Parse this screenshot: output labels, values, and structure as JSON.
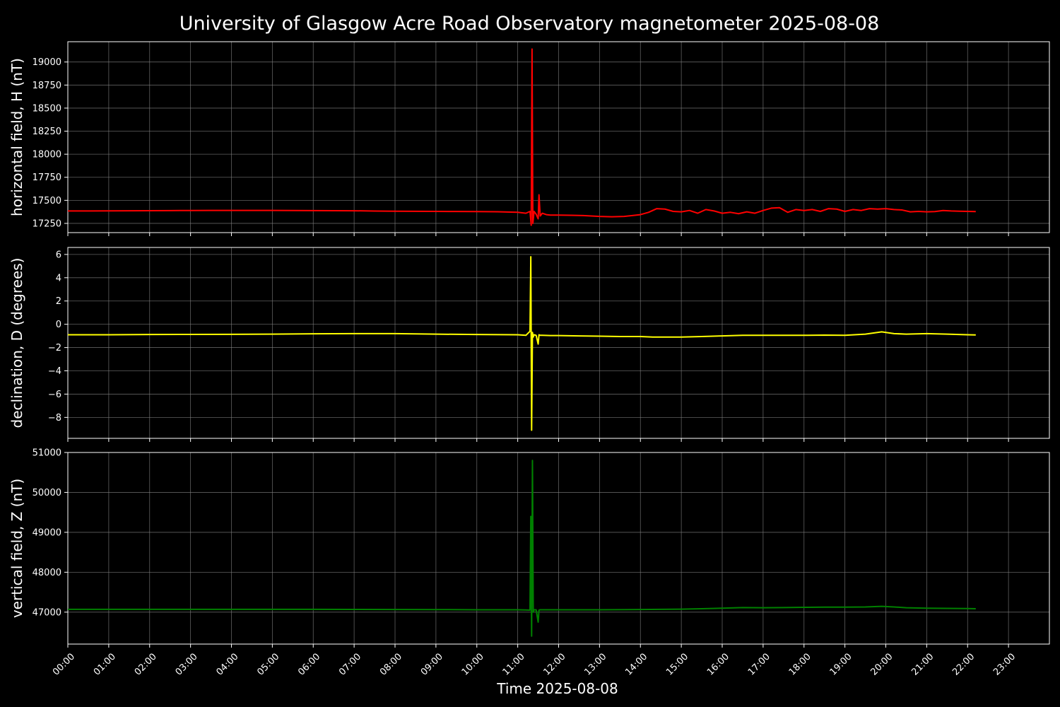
{
  "chart_data": {
    "type": "line",
    "title": "University of Glasgow Acre Road Observatory magnetometer 2025-08-08",
    "xlabel": "Time 2025-08-08",
    "grid": true,
    "x_unit": "hours",
    "xlim": [
      0,
      24
    ],
    "x_ticks": [
      0,
      1,
      2,
      3,
      4,
      5,
      6,
      7,
      8,
      9,
      10,
      11,
      12,
      13,
      14,
      15,
      16,
      17,
      18,
      19,
      20,
      21,
      22,
      23
    ],
    "x_tick_labels": [
      "00:00",
      "01:00",
      "02:00",
      "03:00",
      "04:00",
      "05:00",
      "06:00",
      "07:00",
      "08:00",
      "09:00",
      "10:00",
      "11:00",
      "12:00",
      "13:00",
      "14:00",
      "15:00",
      "16:00",
      "17:00",
      "18:00",
      "19:00",
      "20:00",
      "21:00",
      "22:00",
      "23:00"
    ],
    "panels": [
      {
        "ylabel": "horizontal field, H (nT)",
        "color": "#ff0000",
        "ylim": [
          17150,
          19220
        ],
        "y_ticks": [
          17250,
          17500,
          17750,
          18000,
          18250,
          18500,
          18750,
          19000
        ],
        "y_tick_labels": [
          "17250",
          "17500",
          "17750",
          "18000",
          "18250",
          "18500",
          "18750",
          "19000"
        ],
        "x": [
          0,
          0.5,
          1,
          1.5,
          2,
          2.5,
          3,
          3.5,
          4,
          4.5,
          5,
          5.5,
          6,
          6.5,
          7,
          7.5,
          8,
          8.5,
          9,
          9.5,
          10,
          10.5,
          11,
          11.2,
          11.3,
          11.33,
          11.35,
          11.37,
          11.4,
          11.45,
          11.5,
          11.52,
          11.55,
          11.6,
          11.7,
          11.8,
          12,
          12.3,
          12.6,
          13,
          13.3,
          13.6,
          14,
          14.2,
          14.4,
          14.6,
          14.8,
          15,
          15.2,
          15.4,
          15.6,
          15.8,
          16,
          16.2,
          16.4,
          16.6,
          16.8,
          17,
          17.2,
          17.4,
          17.6,
          17.8,
          18,
          18.2,
          18.4,
          18.6,
          18.8,
          19,
          19.2,
          19.4,
          19.6,
          19.8,
          20,
          20.2,
          20.4,
          20.6,
          20.8,
          21,
          21.2,
          21.4,
          21.6,
          21.8,
          22,
          22.2
        ],
        "y": [
          17385,
          17385,
          17386,
          17387,
          17388,
          17389,
          17390,
          17391,
          17391,
          17391,
          17391,
          17390,
          17389,
          17388,
          17387,
          17384,
          17382,
          17381,
          17380,
          17379,
          17378,
          17376,
          17370,
          17360,
          17380,
          17230,
          19140,
          17250,
          17380,
          17350,
          17300,
          17560,
          17330,
          17360,
          17345,
          17340,
          17340,
          17338,
          17335,
          17325,
          17322,
          17325,
          17345,
          17370,
          17410,
          17405,
          17380,
          17375,
          17390,
          17360,
          17400,
          17385,
          17360,
          17370,
          17355,
          17375,
          17360,
          17390,
          17415,
          17420,
          17370,
          17400,
          17390,
          17400,
          17380,
          17410,
          17405,
          17380,
          17400,
          17390,
          17410,
          17405,
          17410,
          17400,
          17395,
          17375,
          17380,
          17375,
          17378,
          17390,
          17385,
          17382,
          17380,
          17378
        ]
      },
      {
        "ylabel": "declination, D (degrees)",
        "color": "#ffff00",
        "ylim": [
          -9.8,
          6.6
        ],
        "y_ticks": [
          -8,
          -6,
          -4,
          -2,
          0,
          2,
          4,
          6
        ],
        "y_tick_labels": [
          "−8",
          "−6",
          "−4",
          "−2",
          "0",
          "2",
          "4",
          "6"
        ],
        "x": [
          0,
          1,
          2,
          3,
          4,
          5,
          6,
          7,
          8,
          9,
          10,
          11,
          11.2,
          11.3,
          11.32,
          11.34,
          11.36,
          11.38,
          11.4,
          11.45,
          11.5,
          11.52,
          11.55,
          11.6,
          11.8,
          12,
          12.5,
          13,
          13.5,
          14,
          14.3,
          14.6,
          15,
          15.5,
          16,
          16.5,
          17,
          17.5,
          18,
          18.5,
          19,
          19.5,
          19.9,
          20.2,
          20.5,
          21,
          21.5,
          22,
          22.2
        ],
        "y": [
          -0.9,
          -0.9,
          -0.88,
          -0.87,
          -0.86,
          -0.85,
          -0.82,
          -0.8,
          -0.8,
          -0.85,
          -0.88,
          -0.9,
          -0.95,
          -0.6,
          5.8,
          -9.1,
          -0.7,
          -1.1,
          -0.9,
          -0.95,
          -1.7,
          -0.9,
          -0.95,
          -0.95,
          -0.97,
          -0.97,
          -1.0,
          -1.02,
          -1.05,
          -1.05,
          -1.1,
          -1.1,
          -1.1,
          -1.05,
          -1.0,
          -0.95,
          -0.95,
          -0.95,
          -0.95,
          -0.93,
          -0.95,
          -0.85,
          -0.65,
          -0.8,
          -0.85,
          -0.8,
          -0.85,
          -0.9,
          -0.92
        ]
      },
      {
        "ylabel": "vertical field, Z (nT)",
        "color": "#008000",
        "ylim": [
          46200,
          51000
        ],
        "y_ticks": [
          47000,
          48000,
          49000,
          50000,
          51000
        ],
        "y_tick_labels": [
          "47000",
          "48000",
          "49000",
          "50000",
          "51000"
        ],
        "x": [
          0,
          1,
          2,
          3,
          4,
          5,
          6,
          7,
          8,
          9,
          10,
          11,
          11.2,
          11.3,
          11.32,
          11.34,
          11.36,
          11.38,
          11.4,
          11.45,
          11.5,
          11.52,
          11.55,
          11.6,
          12,
          13,
          14,
          15,
          15.5,
          16,
          16.5,
          17,
          17.5,
          18,
          18.5,
          19,
          19.5,
          19.9,
          20.2,
          20.5,
          21,
          21.5,
          22,
          22.2
        ],
        "y": [
          47070,
          47070,
          47070,
          47070,
          47070,
          47070,
          47070,
          47068,
          47066,
          47064,
          47060,
          47058,
          47055,
          47050,
          49400,
          46400,
          50800,
          47000,
          47060,
          47060,
          46750,
          47050,
          47060,
          47060,
          47060,
          47060,
          47065,
          47075,
          47085,
          47100,
          47115,
          47110,
          47115,
          47120,
          47125,
          47125,
          47130,
          47145,
          47130,
          47110,
          47100,
          47095,
          47090,
          47085
        ]
      }
    ]
  }
}
